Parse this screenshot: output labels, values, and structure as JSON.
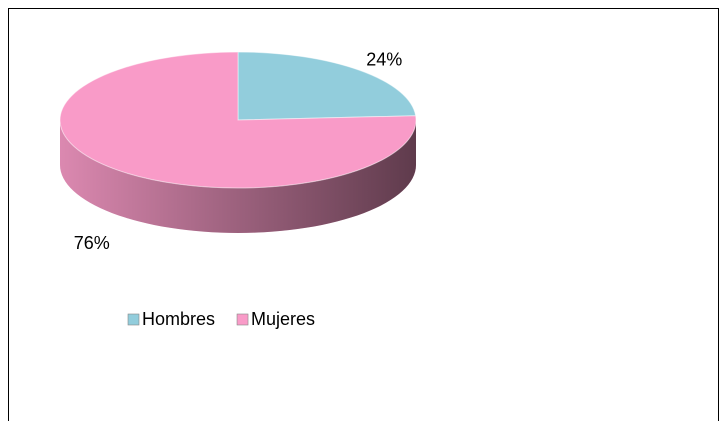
{
  "chart_data": {
    "type": "pie",
    "categories": [
      "Hombres",
      "Mujeres"
    ],
    "values": [
      24,
      76
    ],
    "value_labels": [
      "24%",
      "76%"
    ],
    "colors": [
      "#92cddc",
      "#f99bc8"
    ],
    "legend": "bottom-left"
  }
}
